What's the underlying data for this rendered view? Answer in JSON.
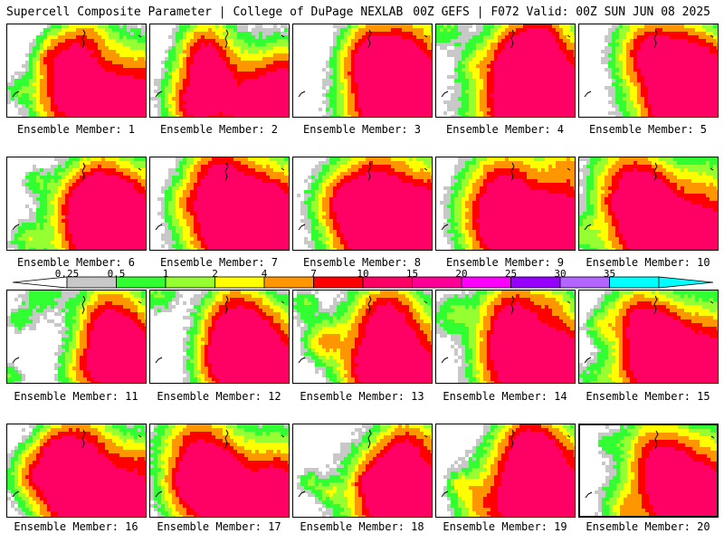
{
  "header": {
    "left": "Supercell Composite Parameter | College of DuPage NEXLAB",
    "right": "00Z GEFS | F072 Valid: 00Z SUN JUN 08 2025"
  },
  "colorbar": {
    "labels": [
      "0.25",
      "0.5",
      "1",
      "2",
      "4",
      "7",
      "10",
      "15",
      "20",
      "25",
      "30",
      "35"
    ],
    "colors": [
      "#c8c8c8",
      "#32ff32",
      "#96ff32",
      "#ffff00",
      "#ff9600",
      "#ff0000",
      "#ff0064",
      "#ff0096",
      "#ff00ff",
      "#9600ff",
      "#b464ff",
      "#00ffff"
    ]
  },
  "members": [
    {
      "caption": "Ensemble Member: 1"
    },
    {
      "caption": "Ensemble Member: 2"
    },
    {
      "caption": "Ensemble Member: 3"
    },
    {
      "caption": "Ensemble Member: 4"
    },
    {
      "caption": "Ensemble Member: 5"
    },
    {
      "caption": "Ensemble Member: 6"
    },
    {
      "caption": "Ensemble Member: 7"
    },
    {
      "caption": "Ensemble Member: 8"
    },
    {
      "caption": "Ensemble Member: 9"
    },
    {
      "caption": "Ensemble Member: 10"
    },
    {
      "caption": "Ensemble Member: 11"
    },
    {
      "caption": "Ensemble Member: 12"
    },
    {
      "caption": "Ensemble Member: 13"
    },
    {
      "caption": "Ensemble Member: 14"
    },
    {
      "caption": "Ensemble Member: 15"
    },
    {
      "caption": "Ensemble Member: 16"
    },
    {
      "caption": "Ensemble Member: 17"
    },
    {
      "caption": "Ensemble Member: 18"
    },
    {
      "caption": "Ensemble Member: 19"
    },
    {
      "caption": "Ensemble Member: 20"
    }
  ]
}
